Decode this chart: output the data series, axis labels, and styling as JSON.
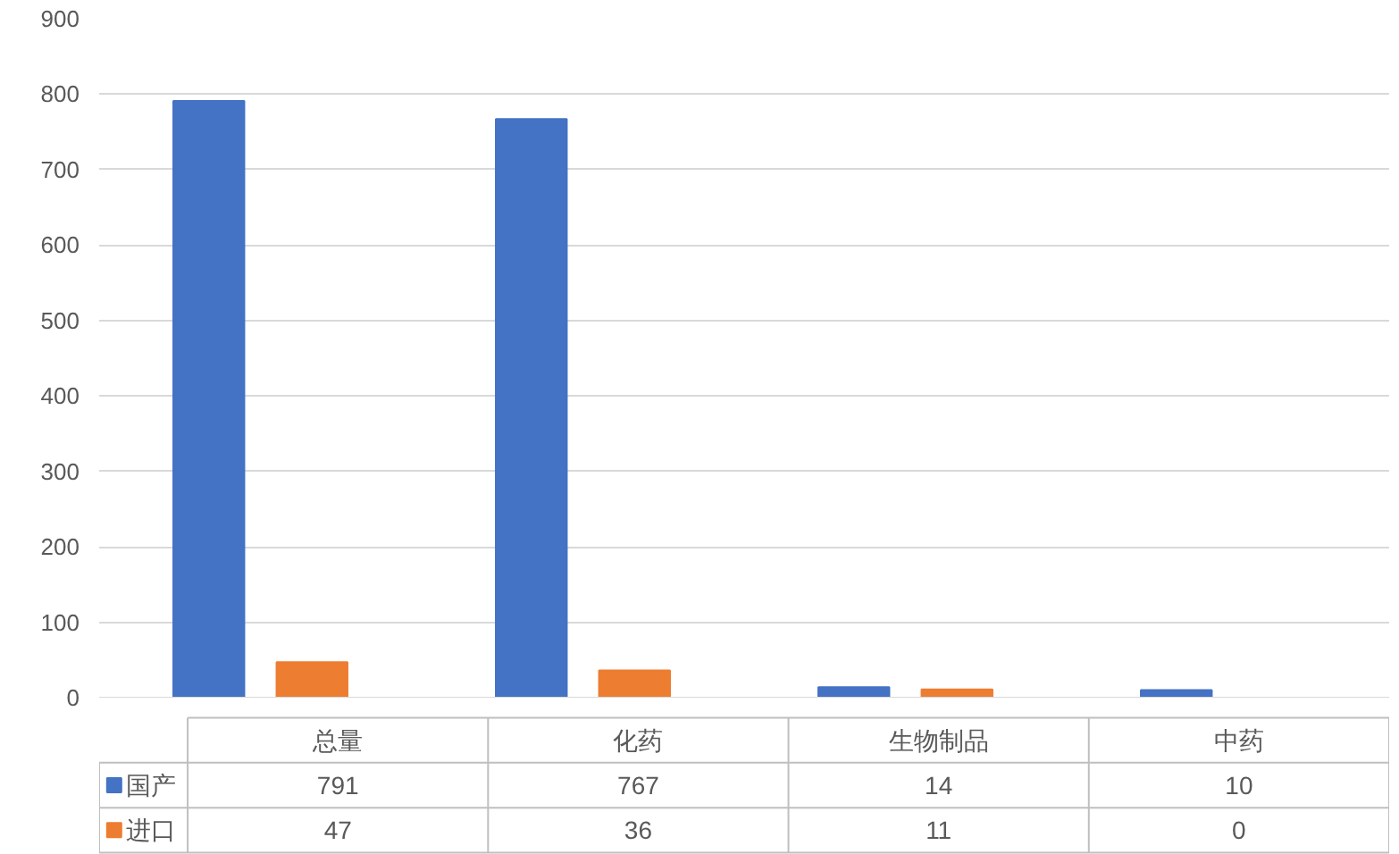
{
  "chart_data": {
    "type": "bar",
    "categories": [
      "总量",
      "化药",
      "生物制品",
      "中药"
    ],
    "series": [
      {
        "name": "国产",
        "color": "#4472c4",
        "values": [
          791,
          767,
          14,
          10
        ]
      },
      {
        "name": "进口",
        "color": "#ed7d31",
        "values": [
          47,
          36,
          11,
          0
        ]
      }
    ],
    "ylim": [
      0,
      900
    ],
    "yticks": [
      0,
      100,
      200,
      300,
      400,
      500,
      600,
      700,
      800,
      900
    ],
    "grid": "y",
    "legend": "bottom",
    "data_labels": true
  }
}
